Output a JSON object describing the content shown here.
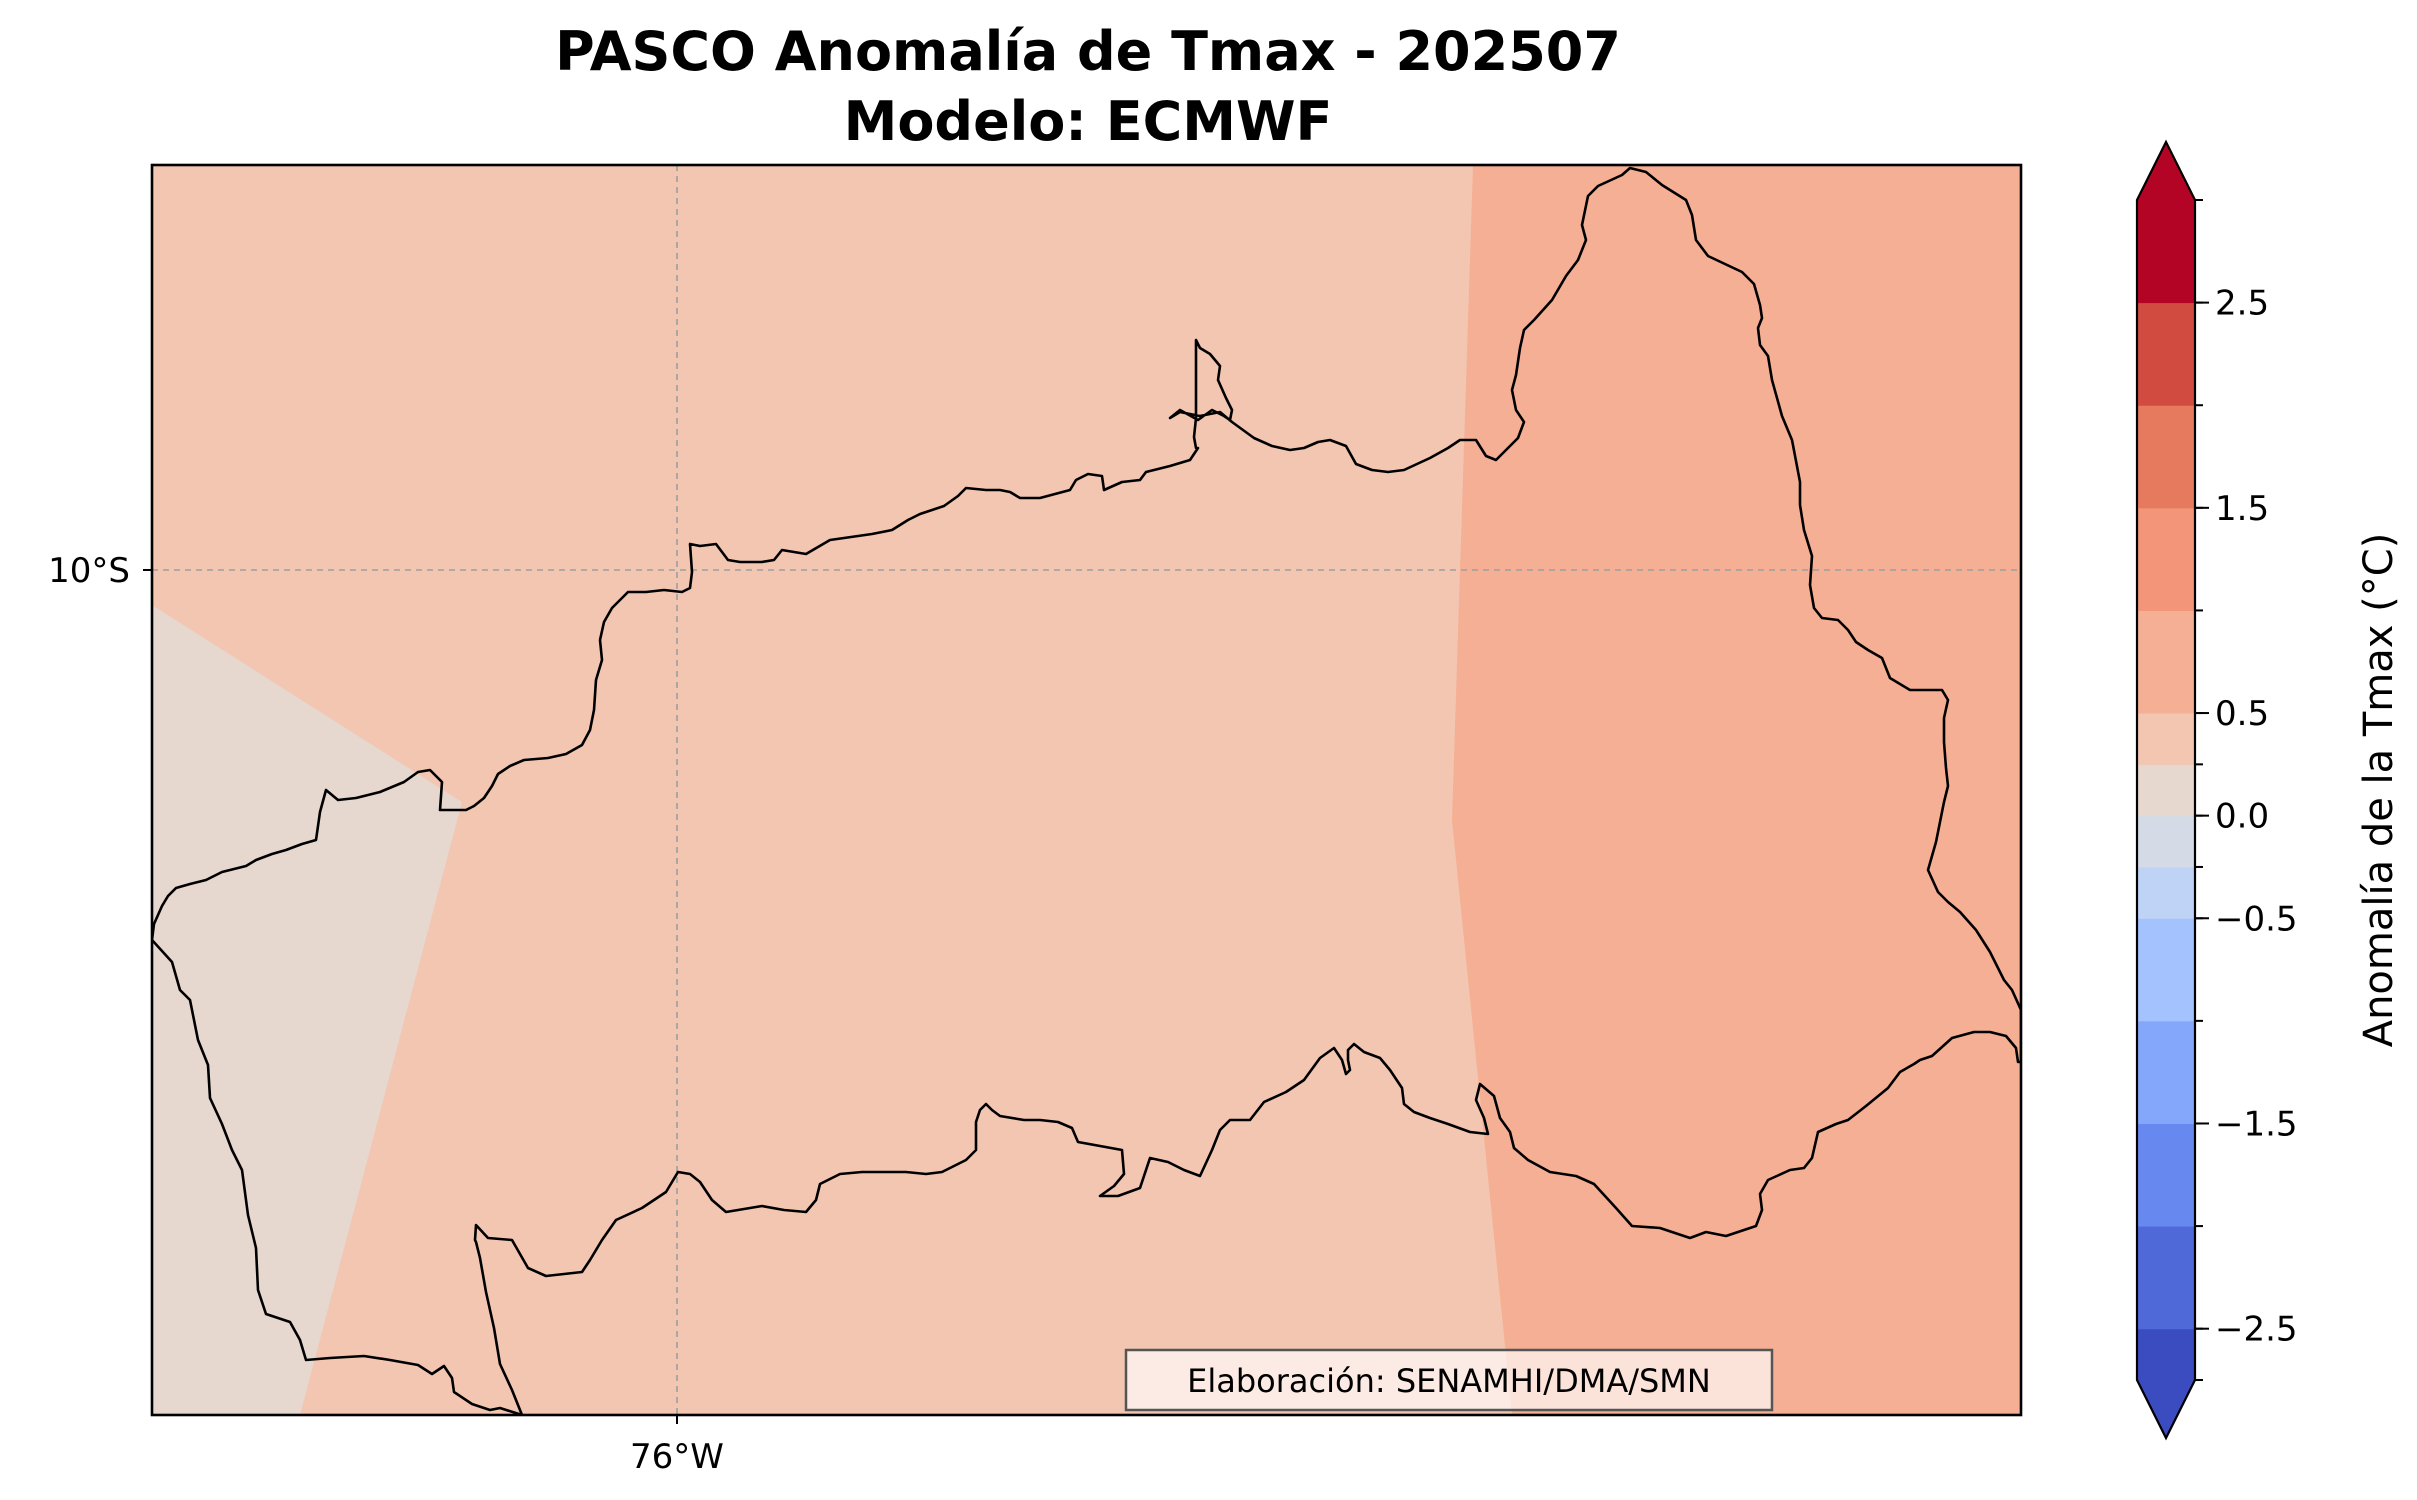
{
  "title_line1": "PASCO Anomalía de Tmax - 202507",
  "title_line2": "Modelo: ECMWF",
  "map": {
    "lon_tick_labels": [
      "76°W"
    ],
    "lat_tick_labels": [
      "10°S"
    ],
    "gridlines": true,
    "zones": [
      {
        "name": "zona-0.0-0.25",
        "color": "#e6d7cf"
      },
      {
        "name": "zona-0.25-0.75",
        "color": "#f2c6b1"
      },
      {
        "name": "zona-0.75-1.25",
        "color": "#f5af94"
      }
    ],
    "credit": "Elaboración: SENAMHI/DMA/SMN"
  },
  "colorbar": {
    "label": "Anomalía de la Tmax (°C)",
    "levels": [
      -2.75,
      -2.5,
      -2.0,
      -1.5,
      -1.0,
      -0.5,
      -0.25,
      0.0,
      0.25,
      0.5,
      1.0,
      1.5,
      2.0,
      2.5,
      3.0
    ],
    "tick_values": [
      -2.5,
      -1.5,
      -0.5,
      0.0,
      0.5,
      1.5,
      2.5
    ],
    "tick_labels": [
      "−2.5",
      "−1.5",
      "−0.5",
      "0.0",
      "0.5",
      "1.5",
      "2.5"
    ],
    "colors": [
      "#3b4cc0",
      "#4f69d8",
      "#6788ee",
      "#84a7fc",
      "#a3c2fe",
      "#bfd3f6",
      "#d4dbe6",
      "#e6d7cf",
      "#f2c6b1",
      "#f5af94",
      "#f39578",
      "#e67a5f",
      "#d24b40",
      "#b40426"
    ],
    "under_color": "#3b4cc0",
    "over_color": "#b40426",
    "extend": "both"
  }
}
